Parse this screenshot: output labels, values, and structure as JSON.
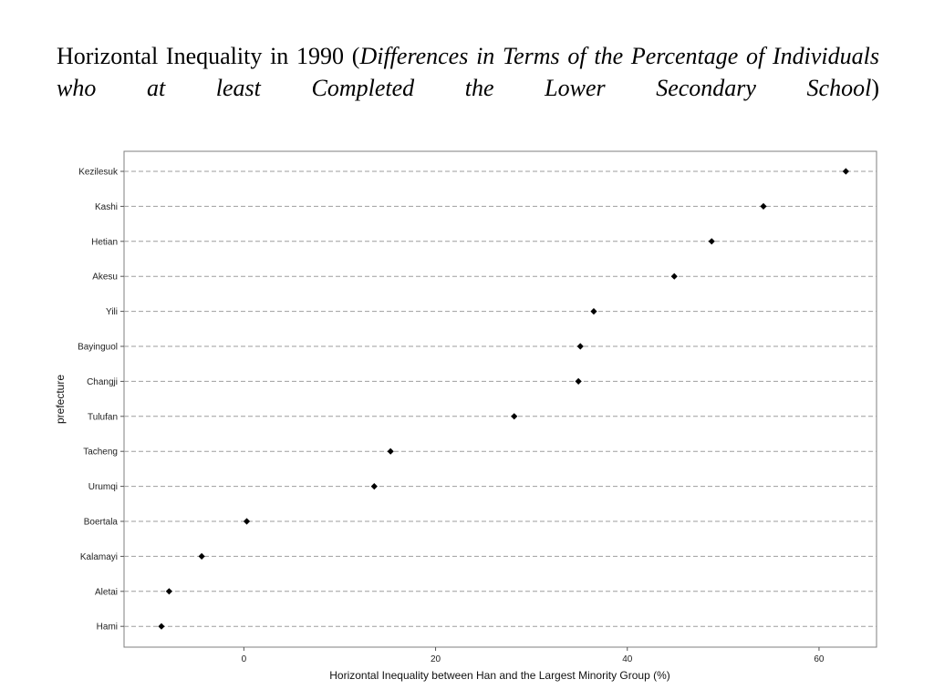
{
  "slide": {
    "title_plain": "Horizontal Inequality in 1990 (",
    "title_italic": "Differences in Terms of the Percentage of Individuals who at least Completed the Lower Secondary School",
    "title_close": ")"
  },
  "chart_data": {
    "type": "scatter",
    "xlabel": "Horizontal Inequality between Han and the Largest Minority Group (%)",
    "ylabel": "prefecture",
    "xlim": [
      -12.5,
      66
    ],
    "xticks": [
      0,
      20,
      40,
      60
    ],
    "grid": "horizontal dashed",
    "categories": [
      "Kezilesuk",
      "Kashi",
      "Hetian",
      "Akesu",
      "Yili",
      "Bayinguol",
      "Changji",
      "Tulufan",
      "Tacheng",
      "Urumqi",
      "Boertala",
      "Kalamayi",
      "Aletai",
      "Hami"
    ],
    "values": [
      62.8,
      54.2,
      48.8,
      44.9,
      36.5,
      35.1,
      34.9,
      28.2,
      15.3,
      13.6,
      0.3,
      -4.4,
      -7.8,
      -8.6
    ],
    "marker_color": "#000000",
    "grid_color": "#9e9e9e"
  }
}
